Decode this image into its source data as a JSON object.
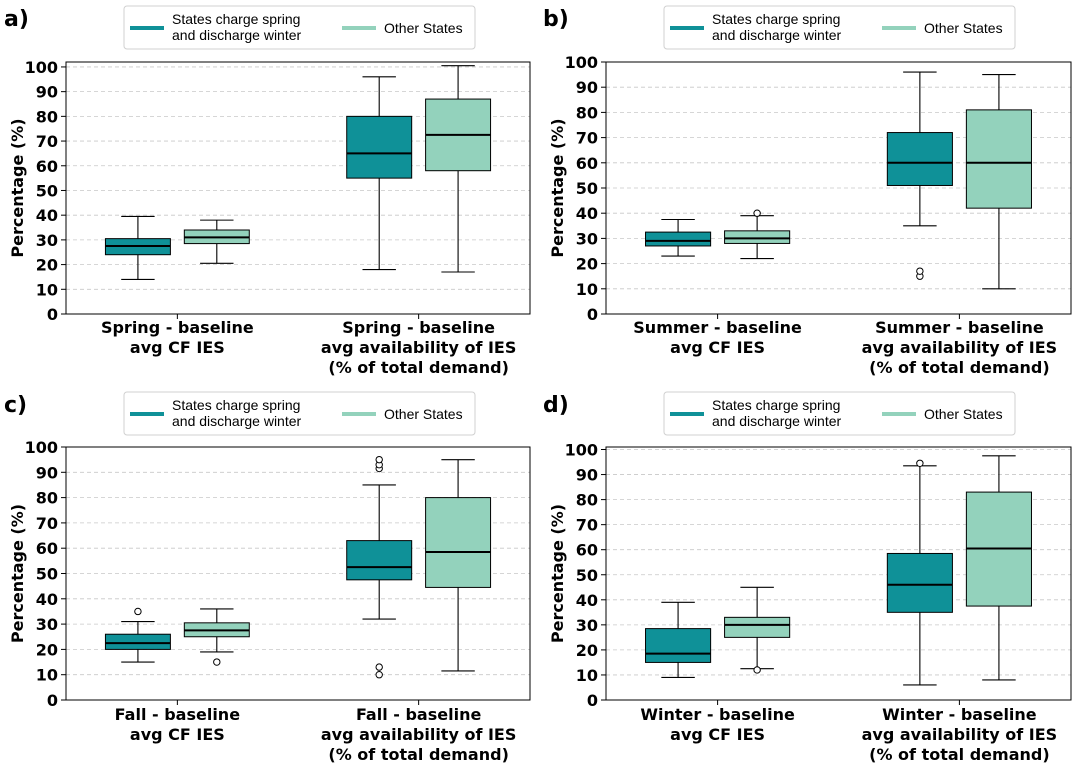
{
  "colors": {
    "states_charge": "#0f9198",
    "other_states": "#93d2bc"
  },
  "chart_data": [
    {
      "type": "box",
      "panel_label": "a)",
      "ylabel": "Percentage (%)",
      "ylim": [
        0,
        102
      ],
      "yticks": [
        0,
        10,
        20,
        30,
        40,
        50,
        60,
        70,
        80,
        90,
        100
      ],
      "legend": [
        "States charge spring|and discharge winter",
        "Other States"
      ],
      "categories": [
        [
          "Spring - baseline",
          "avg CF IES"
        ],
        [
          "Spring - baseline",
          "avg availability of IES",
          "(% of total demand)"
        ]
      ],
      "series": [
        {
          "name": "States charge spring and discharge winter",
          "boxes": [
            {
              "whislo": 14,
              "q1": 24,
              "med": 27.5,
              "q3": 30.5,
              "whishi": 39.5,
              "fliers": []
            },
            {
              "whislo": 18,
              "q1": 55,
              "med": 65,
              "q3": 80,
              "whishi": 96,
              "fliers": []
            }
          ]
        },
        {
          "name": "Other States",
          "boxes": [
            {
              "whislo": 20.5,
              "q1": 28.5,
              "med": 31,
              "q3": 34,
              "whishi": 38,
              "fliers": []
            },
            {
              "whislo": 17,
              "q1": 58,
              "med": 72.5,
              "q3": 87,
              "whishi": 100.5,
              "fliers": []
            }
          ]
        }
      ]
    },
    {
      "type": "box",
      "panel_label": "b)",
      "ylabel": "Percentage (%)",
      "ylim": [
        0,
        100
      ],
      "yticks": [
        0,
        10,
        20,
        30,
        40,
        50,
        60,
        70,
        80,
        90,
        100
      ],
      "legend": [
        "States charge spring|and discharge winter",
        "Other States"
      ],
      "categories": [
        [
          "Summer - baseline",
          "avg CF IES"
        ],
        [
          "Summer - baseline",
          "avg availability of IES",
          "(% of total demand)"
        ]
      ],
      "series": [
        {
          "name": "States charge spring and discharge winter",
          "boxes": [
            {
              "whislo": 23,
              "q1": 27,
              "med": 29,
              "q3": 32.5,
              "whishi": 37.5,
              "fliers": []
            },
            {
              "whislo": 35,
              "q1": 51,
              "med": 60,
              "q3": 72,
              "whishi": 96,
              "fliers": [
                15,
                17
              ]
            }
          ]
        },
        {
          "name": "Other States",
          "boxes": [
            {
              "whislo": 22,
              "q1": 28,
              "med": 30,
              "q3": 33,
              "whishi": 39,
              "fliers": [
                40
              ]
            },
            {
              "whislo": 10,
              "q1": 42,
              "med": 60,
              "q3": 81,
              "whishi": 95,
              "fliers": []
            }
          ]
        }
      ]
    },
    {
      "type": "box",
      "panel_label": "c)",
      "ylabel": "Percentage (%)",
      "ylim": [
        0,
        100
      ],
      "yticks": [
        0,
        10,
        20,
        30,
        40,
        50,
        60,
        70,
        80,
        90,
        100
      ],
      "legend": [
        "States charge spring|and discharge winter",
        "Other States"
      ],
      "categories": [
        [
          "Fall - baseline",
          "avg CF IES"
        ],
        [
          "Fall - baseline",
          "avg availability of IES",
          "(% of total demand)"
        ]
      ],
      "series": [
        {
          "name": "States charge spring and discharge winter",
          "boxes": [
            {
              "whislo": 15,
              "q1": 20,
              "med": 22.5,
              "q3": 26,
              "whishi": 31,
              "fliers": [
                35
              ]
            },
            {
              "whislo": 32,
              "q1": 47.5,
              "med": 52.5,
              "q3": 63,
              "whishi": 85,
              "fliers": [
                10,
                13,
                91.5,
                93,
                95
              ]
            }
          ]
        },
        {
          "name": "Other States",
          "boxes": [
            {
              "whislo": 19,
              "q1": 25,
              "med": 27.5,
              "q3": 30.5,
              "whishi": 36,
              "fliers": [
                15
              ]
            },
            {
              "whislo": 11.5,
              "q1": 44.5,
              "med": 58.5,
              "q3": 80,
              "whishi": 95,
              "fliers": []
            }
          ]
        }
      ]
    },
    {
      "type": "box",
      "panel_label": "d)",
      "ylabel": "Percentage (%)",
      "ylim": [
        0,
        101
      ],
      "yticks": [
        0,
        10,
        20,
        30,
        40,
        50,
        60,
        70,
        80,
        90,
        100
      ],
      "legend": [
        "States charge spring|and discharge winter",
        "Other States"
      ],
      "categories": [
        [
          "Winter - baseline",
          "avg CF IES"
        ],
        [
          "Winter - baseline",
          "avg availability of IES",
          "(% of total demand)"
        ]
      ],
      "series": [
        {
          "name": "States charge spring and discharge winter",
          "boxes": [
            {
              "whislo": 9,
              "q1": 15,
              "med": 18.5,
              "q3": 28.5,
              "whishi": 39,
              "fliers": []
            },
            {
              "whislo": 6,
              "q1": 35,
              "med": 46,
              "q3": 58.5,
              "whishi": 93.5,
              "fliers": [
                94.5
              ]
            }
          ]
        },
        {
          "name": "Other States",
          "boxes": [
            {
              "whislo": 12.5,
              "q1": 25,
              "med": 30,
              "q3": 33,
              "whishi": 45,
              "fliers": [
                12
              ]
            },
            {
              "whislo": 8,
              "q1": 37.5,
              "med": 60.5,
              "q3": 83,
              "whishi": 97.5,
              "fliers": []
            }
          ]
        }
      ]
    }
  ]
}
